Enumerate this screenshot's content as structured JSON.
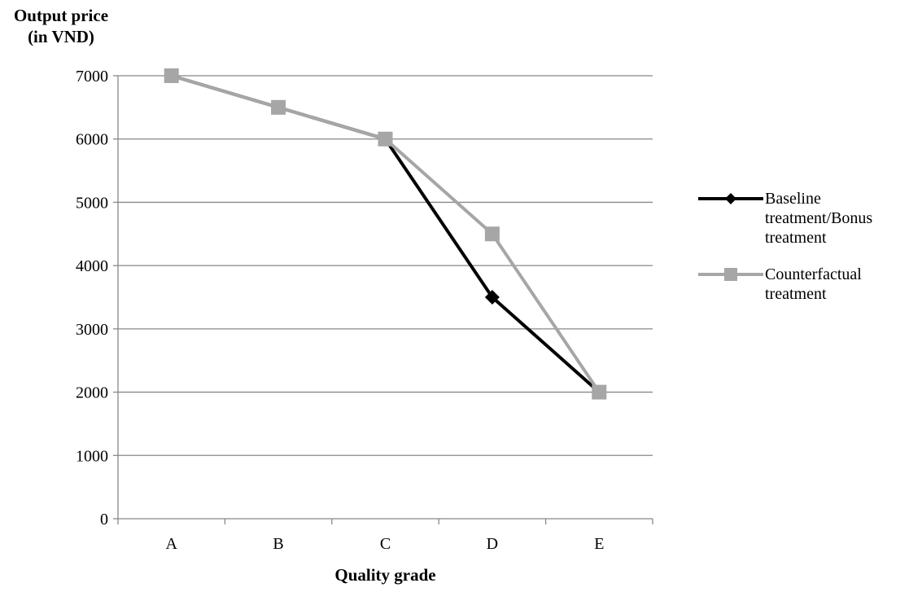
{
  "chart_data": {
    "type": "line",
    "ylabel_line1": "Output price",
    "ylabel_line2": "(in VND)",
    "xlabel": "Quality grade",
    "categories": [
      "A",
      "B",
      "C",
      "D",
      "E"
    ],
    "ylim": [
      0,
      7000
    ],
    "yticks": [
      "0",
      "1000",
      "2000",
      "3000",
      "4000",
      "5000",
      "6000",
      "7000"
    ],
    "grid": true,
    "legend_position": "right",
    "series": [
      {
        "name_line1": "Baseline",
        "name_line2": "treatment/Bonus",
        "name_line3": "treatment",
        "values": [
          7000,
          6500,
          6000,
          3500,
          2000
        ],
        "color": "#000000",
        "marker": "diamond"
      },
      {
        "name_line1": "Counterfactual",
        "name_line2": "treatment",
        "values": [
          7000,
          6500,
          6000,
          4500,
          2000
        ],
        "color": "#a6a6a6",
        "marker": "square"
      }
    ]
  }
}
